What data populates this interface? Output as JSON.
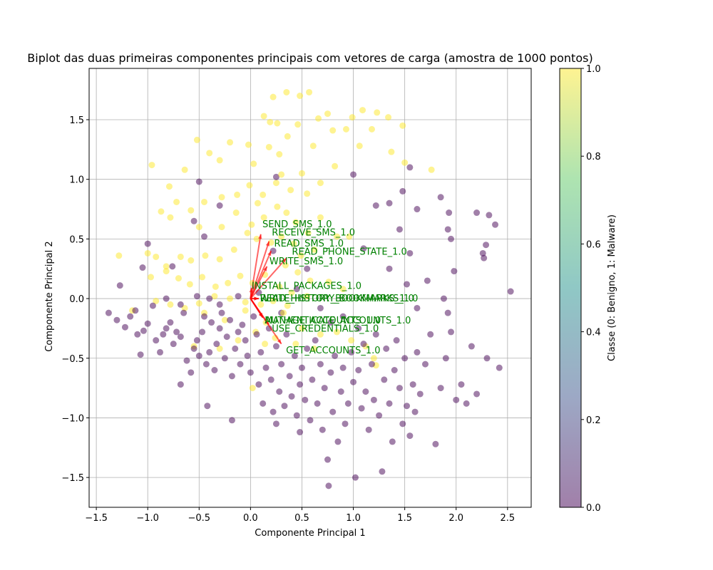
{
  "chart_data": {
    "type": "scatter",
    "title": "Biplot das duas primeiras componentes principais com vetores de carga (amostra de 1000 pontos)",
    "xlabel": "Componente Principal 1",
    "ylabel": "Componente Principal 2",
    "xlim": [
      -1.57,
      2.73
    ],
    "ylim": [
      -1.75,
      1.93
    ],
    "xticks": [
      -1.5,
      -1.0,
      -0.5,
      0.0,
      0.5,
      1.0,
      1.5,
      2.0,
      2.5
    ],
    "xtick_labels": [
      "−1.5",
      "−1.0",
      "−0.5",
      "0.0",
      "0.5",
      "1.0",
      "1.5",
      "2.0",
      "2.5"
    ],
    "yticks": [
      -1.5,
      -1.0,
      -0.5,
      0.0,
      0.5,
      1.0,
      1.5
    ],
    "ytick_labels": [
      "−1.5",
      "−1.0",
      "−0.5",
      "0.0",
      "0.5",
      "1.0",
      "1.5"
    ],
    "grid": true,
    "point_alpha": 0.5,
    "colormap": "viridis",
    "colorbar": {
      "label": "Classe (0: Benigno, 1: Malware)",
      "ticks": [
        0.0,
        0.2,
        0.4,
        0.6,
        0.8,
        1.0
      ],
      "tick_labels": [
        "0.0",
        "0.2",
        "0.4",
        "0.6",
        "0.8",
        "1.0"
      ],
      "range": [
        0.0,
        1.0
      ]
    },
    "classes": [
      {
        "name": "Benigno",
        "value": 0,
        "color": "#440154"
      },
      {
        "name": "Malware",
        "value": 1,
        "color": "#fde725"
      }
    ],
    "points": {
      "malware": [
        [
          0.35,
          1.73
        ],
        [
          0.48,
          1.7
        ],
        [
          0.57,
          1.73
        ],
        [
          0.22,
          1.69
        ],
        [
          0.75,
          1.55
        ],
        [
          0.99,
          1.52
        ],
        [
          1.09,
          1.58
        ],
        [
          1.23,
          1.56
        ],
        [
          1.34,
          1.52
        ],
        [
          1.48,
          1.45
        ],
        [
          0.13,
          1.53
        ],
        [
          0.26,
          1.47
        ],
        [
          0.36,
          1.36
        ],
        [
          0.46,
          1.46
        ],
        [
          0.61,
          1.28
        ],
        [
          0.66,
          1.51
        ],
        [
          0.8,
          1.41
        ],
        [
          0.93,
          1.42
        ],
        [
          1.06,
          1.28
        ],
        [
          1.18,
          1.42
        ],
        [
          1.37,
          1.23
        ],
        [
          1.5,
          1.14
        ],
        [
          1.76,
          1.08
        ],
        [
          -0.02,
          1.29
        ],
        [
          -0.2,
          1.31
        ],
        [
          -0.3,
          1.16
        ],
        [
          -0.4,
          1.22
        ],
        [
          -0.52,
          1.33
        ],
        [
          -0.64,
          1.08
        ],
        [
          -0.79,
          0.94
        ],
        [
          -0.96,
          1.12
        ],
        [
          0.03,
          1.13
        ],
        [
          0.18,
          1.27
        ],
        [
          0.3,
          1.04
        ],
        [
          0.5,
          1.05
        ],
        [
          0.68,
          0.97
        ],
        [
          0.82,
          1.11
        ],
        [
          0.55,
          0.88
        ],
        [
          0.39,
          0.91
        ],
        [
          0.25,
          0.97
        ],
        [
          0.12,
          0.87
        ],
        [
          -0.01,
          0.95
        ],
        [
          -0.13,
          0.87
        ],
        [
          -0.28,
          0.85
        ],
        [
          -0.45,
          0.81
        ],
        [
          -0.58,
          0.74
        ],
        [
          -0.72,
          0.81
        ],
        [
          -0.87,
          0.73
        ],
        [
          -0.78,
          0.68
        ],
        [
          -0.5,
          0.6
        ],
        [
          -0.28,
          0.6
        ],
        [
          -0.14,
          0.72
        ],
        [
          0.01,
          0.62
        ],
        [
          0.13,
          0.68
        ],
        [
          0.26,
          0.77
        ],
        [
          0.35,
          0.72
        ],
        [
          0.44,
          0.64
        ],
        [
          0.56,
          0.55
        ],
        [
          0.68,
          0.68
        ],
        [
          0.84,
          0.52
        ],
        [
          0.96,
          0.52
        ],
        [
          0.62,
          0.41
        ],
        [
          0.49,
          0.36
        ],
        [
          0.34,
          0.28
        ],
        [
          0.2,
          0.47
        ],
        [
          0.06,
          0.5
        ],
        [
          -0.03,
          0.55
        ],
        [
          -0.16,
          0.41
        ],
        [
          -0.3,
          0.33
        ],
        [
          -0.44,
          0.36
        ],
        [
          -0.58,
          0.32
        ],
        [
          -0.68,
          0.35
        ],
        [
          -0.82,
          0.27
        ],
        [
          -0.92,
          0.35
        ],
        [
          -1.0,
          0.38
        ],
        [
          -1.28,
          0.36
        ],
        [
          -0.97,
          0.18
        ],
        [
          -0.82,
          0.23
        ],
        [
          -0.7,
          0.17
        ],
        [
          -0.59,
          0.12
        ],
        [
          -0.47,
          0.18
        ],
        [
          -0.34,
          0.1
        ],
        [
          -0.22,
          0.13
        ],
        [
          -0.1,
          0.19
        ],
        [
          0.02,
          0.13
        ],
        [
          0.14,
          0.2
        ],
        [
          0.28,
          0.1
        ],
        [
          0.46,
          0.22
        ],
        [
          0.58,
          0.15
        ],
        [
          0.76,
          0.14
        ],
        [
          0.9,
          0.08
        ],
        [
          0.55,
          0.02
        ],
        [
          0.4,
          0.05
        ],
        [
          0.22,
          -0.02
        ],
        [
          0.1,
          -0.05
        ],
        [
          -0.05,
          -0.03
        ],
        [
          -0.2,
          0.0
        ],
        [
          -0.35,
          0.02
        ],
        [
          -0.5,
          -0.04
        ],
        [
          -0.64,
          -0.08
        ],
        [
          -0.78,
          -0.05
        ],
        [
          -0.92,
          -0.02
        ],
        [
          -1.15,
          -0.1
        ],
        [
          -0.45,
          -0.12
        ],
        [
          -0.25,
          -0.18
        ],
        [
          -0.05,
          -0.1
        ],
        [
          0.15,
          -0.2
        ],
        [
          0.32,
          -0.12
        ],
        [
          0.5,
          -0.25
        ],
        [
          0.68,
          -0.3
        ],
        [
          0.84,
          -0.28
        ],
        [
          0.98,
          -0.35
        ],
        [
          1.12,
          -0.4
        ],
        [
          1.2,
          -0.5
        ],
        [
          1.22,
          -0.56
        ],
        [
          0.62,
          -0.42
        ],
        [
          0.44,
          -0.38
        ],
        [
          0.24,
          -0.33
        ],
        [
          0.05,
          -0.28
        ],
        [
          -0.12,
          -0.35
        ],
        [
          -0.3,
          -0.42
        ],
        [
          -0.55,
          -0.4
        ],
        [
          0.02,
          -0.75
        ],
        [
          0.14,
          -0.38
        ],
        [
          0.36,
          -0.06
        ],
        [
          0.42,
          0.46
        ],
        [
          0.3,
          0.52
        ],
        [
          0.07,
          0.8
        ],
        [
          0.19,
          1.48
        ],
        [
          0.28,
          1.21
        ]
      ],
      "benign": [
        [
          -1.38,
          -0.12
        ],
        [
          -1.3,
          -0.18
        ],
        [
          -1.22,
          -0.24
        ],
        [
          -1.17,
          -0.15
        ],
        [
          -1.12,
          -0.1
        ],
        [
          -1.1,
          -0.3
        ],
        [
          -1.07,
          -0.47
        ],
        [
          -1.04,
          -0.27
        ],
        [
          -1.0,
          -0.21
        ],
        [
          -0.95,
          -0.06
        ],
        [
          -0.92,
          -0.35
        ],
        [
          -0.88,
          -0.45
        ],
        [
          -0.85,
          -0.3
        ],
        [
          -0.82,
          -0.25
        ],
        [
          -0.78,
          -0.2
        ],
        [
          -0.75,
          -0.38
        ],
        [
          -0.72,
          -0.28
        ],
        [
          -0.68,
          -0.32
        ],
        [
          -0.65,
          -0.12
        ],
        [
          -0.62,
          -0.52
        ],
        [
          -0.58,
          -0.62
        ],
        [
          -0.55,
          -0.42
        ],
        [
          -0.52,
          -0.35
        ],
        [
          -0.5,
          -0.48
        ],
        [
          -0.47,
          -0.28
        ],
        [
          -0.45,
          -0.15
        ],
        [
          -0.43,
          -0.55
        ],
        [
          -0.4,
          -0.45
        ],
        [
          -0.38,
          -0.2
        ],
        [
          -0.35,
          -0.6
        ],
        [
          -0.33,
          -0.38
        ],
        [
          -0.3,
          -0.25
        ],
        [
          -0.28,
          -0.12
        ],
        [
          -0.25,
          -0.5
        ],
        [
          -0.23,
          -0.32
        ],
        [
          -0.2,
          -0.18
        ],
        [
          -0.18,
          -0.65
        ],
        [
          -0.15,
          -0.42
        ],
        [
          -0.12,
          -0.28
        ],
        [
          -0.1,
          -0.55
        ],
        [
          -0.08,
          -0.22
        ],
        [
          -0.05,
          -0.35
        ],
        [
          -0.03,
          -0.48
        ],
        [
          0.0,
          -0.62
        ],
        [
          0.03,
          -0.15
        ],
        [
          0.06,
          -0.3
        ],
        [
          0.08,
          -0.72
        ],
        [
          0.1,
          -0.45
        ],
        [
          0.12,
          -0.88
        ],
        [
          0.15,
          -0.58
        ],
        [
          0.18,
          -0.25
        ],
        [
          0.2,
          -0.68
        ],
        [
          0.22,
          -0.95
        ],
        [
          0.25,
          -0.4
        ],
        [
          0.28,
          -0.78
        ],
        [
          0.3,
          -0.55
        ],
        [
          0.33,
          -0.9
        ],
        [
          0.35,
          -0.3
        ],
        [
          0.38,
          -0.65
        ],
        [
          0.4,
          -0.82
        ],
        [
          0.43,
          -0.48
        ],
        [
          0.45,
          -0.98
        ],
        [
          0.48,
          -0.72
        ],
        [
          0.5,
          -0.58
        ],
        [
          0.53,
          -0.85
        ],
        [
          0.55,
          -0.42
        ],
        [
          0.58,
          -1.02
        ],
        [
          0.6,
          -0.68
        ],
        [
          0.63,
          -0.35
        ],
        [
          0.65,
          -0.88
        ],
        [
          0.68,
          -0.55
        ],
        [
          0.7,
          -1.1
        ],
        [
          0.72,
          -0.75
        ],
        [
          0.75,
          -1.35
        ],
        [
          0.78,
          -0.62
        ],
        [
          0.8,
          -0.95
        ],
        [
          0.82,
          -0.48
        ],
        [
          0.85,
          -1.2
        ],
        [
          0.88,
          -0.78
        ],
        [
          0.9,
          -0.58
        ],
        [
          0.92,
          -1.05
        ],
        [
          0.95,
          -0.88
        ],
        [
          0.98,
          -0.45
        ],
        [
          1.0,
          -0.7
        ],
        [
          1.02,
          -1.5
        ],
        [
          1.05,
          -0.6
        ],
        [
          1.08,
          -0.92
        ],
        [
          1.1,
          -0.38
        ],
        [
          1.12,
          -0.78
        ],
        [
          1.15,
          -1.1
        ],
        [
          1.18,
          -0.55
        ],
        [
          1.2,
          -0.85
        ],
        [
          1.22,
          -0.3
        ],
        [
          1.25,
          -0.98
        ],
        [
          1.28,
          -1.45
        ],
        [
          1.3,
          -0.68
        ],
        [
          1.32,
          -0.42
        ],
        [
          1.35,
          -0.88
        ],
        [
          1.38,
          -1.2
        ],
        [
          1.4,
          -0.6
        ],
        [
          1.42,
          -0.35
        ],
        [
          1.45,
          -0.75
        ],
        [
          1.48,
          -1.05
        ],
        [
          1.5,
          -0.5
        ],
        [
          1.52,
          -0.9
        ],
        [
          1.55,
          -1.15
        ],
        [
          1.58,
          -0.72
        ],
        [
          1.6,
          -0.95
        ],
        [
          1.62,
          -0.45
        ],
        [
          1.65,
          -0.8
        ],
        [
          1.7,
          -0.55
        ],
        [
          1.75,
          -0.3
        ],
        [
          1.8,
          -1.22
        ],
        [
          1.85,
          -0.75
        ],
        [
          1.9,
          -0.5
        ],
        [
          1.95,
          -0.28
        ],
        [
          2.0,
          -0.85
        ],
        [
          2.05,
          -0.72
        ],
        [
          2.1,
          -0.88
        ],
        [
          2.15,
          -0.4
        ],
        [
          2.2,
          -0.8
        ],
        [
          2.3,
          -0.5
        ],
        [
          2.42,
          -0.58
        ],
        [
          2.53,
          0.06
        ],
        [
          0.76,
          -1.57
        ],
        [
          -0.18,
          -1.02
        ],
        [
          -0.42,
          -0.9
        ],
        [
          -0.68,
          -0.72
        ],
        [
          0.25,
          -1.05
        ],
        [
          0.48,
          -1.12
        ],
        [
          1.0,
          1.04
        ],
        [
          1.22,
          0.78
        ],
        [
          1.35,
          0.8
        ],
        [
          1.48,
          0.9
        ],
        [
          1.55,
          1.1
        ],
        [
          1.62,
          0.75
        ],
        [
          1.85,
          0.85
        ],
        [
          1.93,
          0.72
        ],
        [
          1.95,
          0.5
        ],
        [
          2.2,
          0.72
        ],
        [
          2.32,
          0.7
        ],
        [
          2.38,
          0.62
        ],
        [
          2.26,
          0.38
        ],
        [
          2.27,
          0.34
        ],
        [
          2.29,
          0.45
        ],
        [
          1.45,
          0.58
        ],
        [
          1.55,
          0.38
        ],
        [
          1.72,
          0.15
        ],
        [
          1.88,
          0.0
        ],
        [
          1.92,
          -0.12
        ],
        [
          1.98,
          0.23
        ],
        [
          1.92,
          0.58
        ],
        [
          1.1,
          0.42
        ],
        [
          1.35,
          0.25
        ],
        [
          1.52,
          0.12
        ],
        [
          1.62,
          -0.08
        ],
        [
          -0.5,
          0.98
        ],
        [
          -0.45,
          0.52
        ],
        [
          -0.55,
          0.65
        ],
        [
          -0.3,
          0.78
        ],
        [
          -1.0,
          0.46
        ],
        [
          -1.05,
          0.26
        ],
        [
          -0.82,
          0.0
        ],
        [
          -0.76,
          0.27
        ],
        [
          -0.4,
          0.0
        ],
        [
          -1.27,
          0.11
        ],
        [
          0.25,
          1.02
        ],
        [
          0.55,
          0.25
        ],
        [
          0.22,
          0.4
        ],
        [
          0.45,
          0.08
        ],
        [
          0.78,
          -0.2
        ],
        [
          0.9,
          -0.15
        ],
        [
          1.05,
          -0.25
        ],
        [
          0.68,
          -0.08
        ],
        [
          0.3,
          -0.12
        ],
        [
          0.08,
          0.05
        ],
        [
          -0.12,
          0.02
        ],
        [
          -0.3,
          -0.05
        ],
        [
          -0.52,
          0.02
        ],
        [
          -0.68,
          -0.05
        ]
      ]
    },
    "loadings": [
      {
        "name": "SEND_SMS_1.0",
        "x": 0.1,
        "y": 0.54
      },
      {
        "name": "RECEIVE_SMS_1.0",
        "x": 0.18,
        "y": 0.48
      },
      {
        "name": "READ_SMS_1.0",
        "x": 0.2,
        "y": 0.4
      },
      {
        "name": "READ_PHONE_STATE_1.0",
        "x": 0.35,
        "y": 0.34
      },
      {
        "name": "WRITE_SMS_1.0",
        "x": 0.16,
        "y": 0.27
      },
      {
        "name": "INSTALL_PACKAGES_1.0",
        "x": 0.01,
        "y": 0.09
      },
      {
        "name": "READ_HISTORY_BOOKMARKS_1.0",
        "x": 0.08,
        "y": 0.0
      },
      {
        "name": "WRITE_HISTORY_BOOKMARKS_1.0",
        "x": 0.08,
        "y": 0.0
      },
      {
        "name": "MANAGE_ACCOUNTS_1.0",
        "x": 0.12,
        "y": -0.16
      },
      {
        "name": "AUTHENTICATE_ACCOUNTS_1.0",
        "x": 0.12,
        "y": -0.16
      },
      {
        "name": "USE_CREDENTIALS_1.0",
        "x": 0.18,
        "y": -0.22
      },
      {
        "name": "GET_ACCOUNTS_1.0",
        "x": 0.3,
        "y": -0.38
      }
    ]
  }
}
